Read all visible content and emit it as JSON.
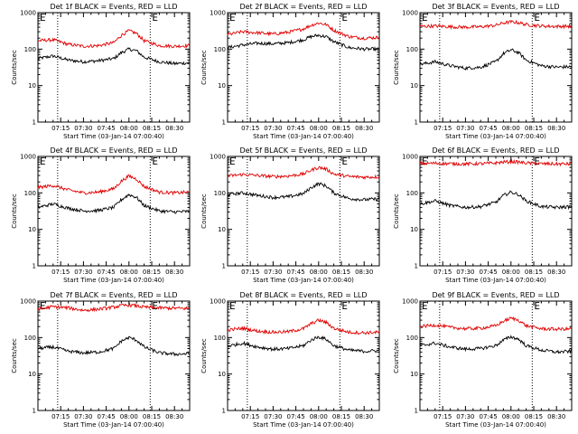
{
  "figure": {
    "x_label": "Start Time (03-Jan-14 07:00:40)",
    "y_label": "Counts/sec",
    "marker_left": "E",
    "marker_right": "E"
  },
  "colors": {
    "events": "#000000",
    "lld": "#e00000",
    "axes": "#000000"
  },
  "chart_data": [
    {
      "type": "line",
      "title": "Det 1f BLACK = Events, RED = LLD",
      "yscale": "log",
      "ylim": [
        1,
        1000
      ],
      "yticks": [
        "1",
        "10",
        "100",
        "1000"
      ],
      "xticks": [
        "07:15",
        "07:30",
        "07:45",
        "08:00",
        "08:15",
        "08:30"
      ],
      "xlim": [
        "07:00",
        "08:40"
      ],
      "markers": [
        "07:13",
        "08:14"
      ],
      "series": [
        {
          "name": "Events",
          "color": "#000000",
          "x": [
            "07:00",
            "07:10",
            "07:20",
            "07:30",
            "07:40",
            "07:50",
            "07:55",
            "08:00",
            "08:05",
            "08:10",
            "08:20",
            "08:30",
            "08:40"
          ],
          "y": [
            55,
            65,
            50,
            45,
            48,
            55,
            80,
            100,
            90,
            60,
            45,
            40,
            42
          ]
        },
        {
          "name": "LLD",
          "color": "#e00000",
          "x": [
            "07:00",
            "07:10",
            "07:20",
            "07:30",
            "07:40",
            "07:50",
            "07:55",
            "08:00",
            "08:05",
            "08:10",
            "08:20",
            "08:30",
            "08:40"
          ],
          "y": [
            170,
            180,
            135,
            120,
            125,
            150,
            240,
            320,
            270,
            170,
            125,
            120,
            125
          ]
        }
      ]
    },
    {
      "type": "line",
      "title": "Det 2f BLACK = Events, RED = LLD",
      "yscale": "log",
      "ylim": [
        1,
        1000
      ],
      "yticks": [
        "1",
        "10",
        "100",
        "1000"
      ],
      "xticks": [
        "07:15",
        "07:30",
        "07:45",
        "08:00",
        "08:15",
        "08:30"
      ],
      "xlim": [
        "07:00",
        "08:40"
      ],
      "markers": [
        "07:13",
        "08:14"
      ],
      "series": [
        {
          "name": "Events",
          "color": "#000000",
          "x": [
            "07:00",
            "07:10",
            "07:20",
            "07:30",
            "07:40",
            "07:50",
            "07:55",
            "08:00",
            "08:05",
            "08:10",
            "08:20",
            "08:30",
            "08:40"
          ],
          "y": [
            110,
            130,
            145,
            140,
            150,
            180,
            220,
            240,
            220,
            160,
            110,
            100,
            100
          ]
        },
        {
          "name": "LLD",
          "color": "#e00000",
          "x": [
            "07:00",
            "07:10",
            "07:20",
            "07:30",
            "07:40",
            "07:50",
            "07:55",
            "08:00",
            "08:05",
            "08:10",
            "08:20",
            "08:30",
            "08:40"
          ],
          "y": [
            250,
            300,
            280,
            260,
            290,
            360,
            450,
            520,
            470,
            330,
            220,
            200,
            210
          ]
        }
      ]
    },
    {
      "type": "line",
      "title": "Det 3f BLACK = Events, RED = LLD",
      "yscale": "log",
      "ylim": [
        1,
        1000
      ],
      "yticks": [
        "1",
        "10",
        "100",
        "1000"
      ],
      "xticks": [
        "07:15",
        "07:30",
        "07:45",
        "08:00",
        "08:15",
        "08:30"
      ],
      "xlim": [
        "07:00",
        "08:40"
      ],
      "markers": [
        "07:13",
        "08:14"
      ],
      "series": [
        {
          "name": "Events",
          "color": "#000000",
          "x": [
            "07:00",
            "07:10",
            "07:20",
            "07:30",
            "07:40",
            "07:50",
            "07:55",
            "08:00",
            "08:05",
            "08:10",
            "08:20",
            "08:30",
            "08:40"
          ],
          "y": [
            38,
            45,
            35,
            30,
            32,
            45,
            75,
            95,
            80,
            50,
            35,
            32,
            33
          ]
        },
        {
          "name": "LLD",
          "color": "#e00000",
          "x": [
            "07:00",
            "07:10",
            "07:20",
            "07:30",
            "07:40",
            "07:50",
            "07:55",
            "08:00",
            "08:05",
            "08:10",
            "08:20",
            "08:30",
            "08:40"
          ],
          "y": [
            420,
            430,
            410,
            400,
            410,
            450,
            520,
            560,
            530,
            470,
            430,
            420,
            425
          ]
        }
      ]
    },
    {
      "type": "line",
      "title": "Det 4f BLACK = Events, RED = LLD",
      "yscale": "log",
      "ylim": [
        1,
        1000
      ],
      "yticks": [
        "1",
        "10",
        "100",
        "1000"
      ],
      "xticks": [
        "07:15",
        "07:30",
        "07:45",
        "08:00",
        "08:15",
        "08:30"
      ],
      "xlim": [
        "07:00",
        "08:40"
      ],
      "markers": [
        "07:13",
        "08:14"
      ],
      "series": [
        {
          "name": "Events",
          "color": "#000000",
          "x": [
            "07:00",
            "07:10",
            "07:20",
            "07:30",
            "07:40",
            "07:50",
            "07:55",
            "08:00",
            "08:05",
            "08:10",
            "08:20",
            "08:30",
            "08:40"
          ],
          "y": [
            40,
            50,
            38,
            32,
            33,
            40,
            65,
            90,
            75,
            45,
            32,
            30,
            31
          ]
        },
        {
          "name": "LLD",
          "color": "#e00000",
          "x": [
            "07:00",
            "07:10",
            "07:20",
            "07:30",
            "07:40",
            "07:50",
            "07:55",
            "08:00",
            "08:05",
            "08:10",
            "08:20",
            "08:30",
            "08:40"
          ],
          "y": [
            140,
            160,
            120,
            100,
            105,
            130,
            210,
            290,
            240,
            150,
            105,
            100,
            105
          ]
        }
      ]
    },
    {
      "type": "line",
      "title": "Det 5f BLACK = Events, RED = LLD",
      "yscale": "log",
      "ylim": [
        1,
        1000
      ],
      "yticks": [
        "1",
        "10",
        "100",
        "1000"
      ],
      "xticks": [
        "07:15",
        "07:30",
        "07:45",
        "08:00",
        "08:15",
        "08:30"
      ],
      "xlim": [
        "07:00",
        "08:40"
      ],
      "markers": [
        "07:13",
        "08:14"
      ],
      "series": [
        {
          "name": "Events",
          "color": "#000000",
          "x": [
            "07:00",
            "07:10",
            "07:20",
            "07:30",
            "07:40",
            "07:50",
            "07:55",
            "08:00",
            "08:05",
            "08:10",
            "08:20",
            "08:30",
            "08:40"
          ],
          "y": [
            90,
            100,
            85,
            75,
            78,
            95,
            140,
            180,
            155,
            100,
            70,
            65,
            68
          ]
        },
        {
          "name": "LLD",
          "color": "#e00000",
          "x": [
            "07:00",
            "07:10",
            "07:20",
            "07:30",
            "07:40",
            "07:50",
            "07:55",
            "08:00",
            "08:05",
            "08:10",
            "08:20",
            "08:30",
            "08:40"
          ],
          "y": [
            290,
            320,
            300,
            280,
            290,
            330,
            420,
            500,
            450,
            330,
            280,
            270,
            275
          ]
        }
      ]
    },
    {
      "type": "line",
      "title": "Det 6f BLACK = Events, RED = LLD",
      "yscale": "log",
      "ylim": [
        1,
        1000
      ],
      "yticks": [
        "1",
        "10",
        "100",
        "1000"
      ],
      "xticks": [
        "07:15",
        "07:30",
        "07:45",
        "08:00",
        "08:15",
        "08:30"
      ],
      "xlim": [
        "07:00",
        "08:40"
      ],
      "markers": [
        "07:13",
        "08:14"
      ],
      "series": [
        {
          "name": "Events",
          "color": "#000000",
          "x": [
            "07:00",
            "07:10",
            "07:20",
            "07:30",
            "07:40",
            "07:50",
            "07:55",
            "08:00",
            "08:05",
            "08:10",
            "08:20",
            "08:30",
            "08:40"
          ],
          "y": [
            50,
            60,
            45,
            40,
            42,
            55,
            85,
            105,
            90,
            60,
            42,
            40,
            42
          ]
        },
        {
          "name": "LLD",
          "color": "#e00000",
          "x": [
            "07:00",
            "07:10",
            "07:20",
            "07:30",
            "07:40",
            "07:50",
            "07:55",
            "08:00",
            "08:05",
            "08:10",
            "08:20",
            "08:30",
            "08:40"
          ],
          "y": [
            640,
            650,
            630,
            620,
            630,
            660,
            700,
            720,
            700,
            660,
            630,
            620,
            625
          ]
        }
      ]
    },
    {
      "type": "line",
      "title": "Det 7f BLACK = Events, RED = LLD",
      "yscale": "log",
      "ylim": [
        1,
        1000
      ],
      "yticks": [
        "1",
        "10",
        "100",
        "1000"
      ],
      "xticks": [
        "07:15",
        "07:30",
        "07:45",
        "08:00",
        "08:15",
        "08:30"
      ],
      "xlim": [
        "07:00",
        "08:40"
      ],
      "markers": [
        "07:13",
        "08:14"
      ],
      "series": [
        {
          "name": "Events",
          "color": "#000000",
          "x": [
            "07:00",
            "07:10",
            "07:20",
            "07:30",
            "07:40",
            "07:50",
            "07:55",
            "08:00",
            "08:05",
            "08:10",
            "08:20",
            "08:30",
            "08:40"
          ],
          "y": [
            50,
            55,
            42,
            38,
            40,
            50,
            80,
            100,
            85,
            55,
            38,
            35,
            36
          ]
        },
        {
          "name": "LLD",
          "color": "#e00000",
          "x": [
            "07:00",
            "07:10",
            "07:20",
            "07:30",
            "07:40",
            "07:50",
            "07:55",
            "08:00",
            "08:05",
            "08:10",
            "08:20",
            "08:30",
            "08:40"
          ],
          "y": [
            600,
            700,
            650,
            560,
            600,
            680,
            750,
            780,
            740,
            680,
            650,
            640,
            620
          ]
        }
      ]
    },
    {
      "type": "line",
      "title": "Det 8f BLACK = Events, RED = LLD",
      "yscale": "log",
      "ylim": [
        1,
        1000
      ],
      "yticks": [
        "1",
        "10",
        "100",
        "1000"
      ],
      "xticks": [
        "07:15",
        "07:30",
        "07:45",
        "08:00",
        "08:15",
        "08:30"
      ],
      "xlim": [
        "07:00",
        "08:40"
      ],
      "markers": [
        "07:13",
        "08:14"
      ],
      "series": [
        {
          "name": "Events",
          "color": "#000000",
          "x": [
            "07:00",
            "07:10",
            "07:20",
            "07:30",
            "07:40",
            "07:50",
            "07:55",
            "08:00",
            "08:05",
            "08:10",
            "08:20",
            "08:30",
            "08:40"
          ],
          "y": [
            58,
            70,
            55,
            48,
            50,
            60,
            85,
            105,
            90,
            60,
            45,
            42,
            44
          ]
        },
        {
          "name": "LLD",
          "color": "#e00000",
          "x": [
            "07:00",
            "07:10",
            "07:20",
            "07:30",
            "07:40",
            "07:50",
            "07:55",
            "08:00",
            "08:05",
            "08:10",
            "08:20",
            "08:30",
            "08:40"
          ],
          "y": [
            160,
            180,
            150,
            140,
            145,
            175,
            240,
            300,
            260,
            180,
            140,
            135,
            140
          ]
        }
      ]
    },
    {
      "type": "line",
      "title": "Det 9f BLACK = Events, RED = LLD",
      "yscale": "log",
      "ylim": [
        1,
        1000
      ],
      "yticks": [
        "1",
        "10",
        "100",
        "1000"
      ],
      "xticks": [
        "07:15",
        "07:30",
        "07:45",
        "08:00",
        "08:15",
        "08:30"
      ],
      "xlim": [
        "07:00",
        "08:40"
      ],
      "markers": [
        "07:13",
        "08:14"
      ],
      "series": [
        {
          "name": "Events",
          "color": "#000000",
          "x": [
            "07:00",
            "07:10",
            "07:20",
            "07:30",
            "07:40",
            "07:50",
            "07:55",
            "08:00",
            "08:05",
            "08:10",
            "08:20",
            "08:30",
            "08:40"
          ],
          "y": [
            60,
            70,
            55,
            48,
            50,
            60,
            85,
            105,
            90,
            60,
            45,
            40,
            42
          ]
        },
        {
          "name": "LLD",
          "color": "#e00000",
          "x": [
            "07:00",
            "07:10",
            "07:20",
            "07:30",
            "07:40",
            "07:50",
            "07:55",
            "08:00",
            "08:05",
            "08:10",
            "08:20",
            "08:30",
            "08:40"
          ],
          "y": [
            200,
            220,
            190,
            175,
            180,
            210,
            280,
            340,
            300,
            210,
            175,
            170,
            172
          ]
        }
      ]
    }
  ]
}
